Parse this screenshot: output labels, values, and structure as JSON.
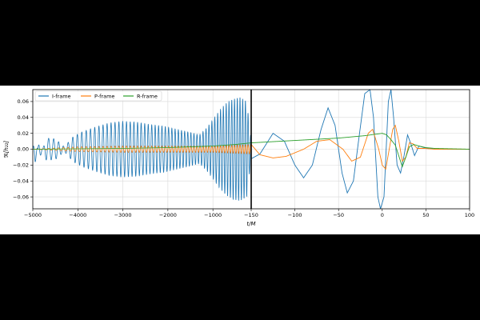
{
  "chart_data": {
    "type": "line",
    "title": "",
    "xlabel": "t/M",
    "ylabel": "ℜ[h₂₂]",
    "ylim": [
      -0.075,
      0.075
    ],
    "grid": true,
    "legend_position": "top-left",
    "panels": [
      {
        "name": "left",
        "xlim": [
          -5000,
          -150
        ],
        "xticks": [
          -5000,
          -4000,
          -3000,
          -2000,
          -1000,
          -150
        ],
        "xtick_labels": [
          "−5000",
          "−4000",
          "−3000",
          "−2000",
          "−1000",
          "−150"
        ]
      },
      {
        "name": "right",
        "xlim": [
          -150,
          100
        ],
        "xticks": [
          -100,
          -50,
          0,
          50,
          100
        ],
        "xtick_labels": [
          "−100",
          "−50",
          "0",
          "50",
          "100"
        ]
      }
    ],
    "yticks": [
      -0.06,
      -0.04,
      -0.02,
      0.0,
      0.02,
      0.04,
      0.06
    ],
    "ytick_labels": [
      "−0.06",
      "−0.04",
      "−0.02",
      "0.00",
      "0.02",
      "0.04",
      "0.06"
    ],
    "series": [
      {
        "name": "I-frame",
        "color": "#1f77b4",
        "points": [
          [
            -5000,
            0.0
          ],
          [
            -4950,
            -0.018
          ],
          [
            -4850,
            0.012
          ],
          [
            -4700,
            -0.014
          ],
          [
            -4500,
            -0.013
          ],
          [
            -4300,
            -0.003
          ],
          [
            -4100,
            -0.016
          ],
          [
            -3900,
            -0.022
          ],
          [
            -3600,
            -0.028
          ],
          [
            -3300,
            -0.033
          ],
          [
            -3000,
            -0.035
          ],
          [
            -2700,
            -0.034
          ],
          [
            -2400,
            -0.031
          ],
          [
            -2100,
            -0.029
          ],
          [
            -1800,
            -0.025
          ],
          [
            -1500,
            -0.021
          ],
          [
            -1300,
            -0.018
          ],
          [
            -1150,
            -0.026
          ],
          [
            -1000,
            -0.037
          ],
          [
            -850,
            -0.049
          ],
          [
            -700,
            -0.058
          ],
          [
            -550,
            -0.063
          ],
          [
            -400,
            -0.065
          ],
          [
            -250,
            -0.06
          ],
          [
            -150,
            -0.012
          ],
          [
            -140,
            -0.006
          ],
          [
            -125,
            0.02
          ],
          [
            -112,
            0.01
          ],
          [
            -100,
            -0.02
          ],
          [
            -90,
            -0.036
          ],
          [
            -80,
            -0.02
          ],
          [
            -70,
            0.025
          ],
          [
            -62,
            0.052
          ],
          [
            -54,
            0.03
          ],
          [
            -46,
            -0.03
          ],
          [
            -40,
            -0.055
          ],
          [
            -33,
            -0.04
          ],
          [
            -26,
            0.02
          ],
          [
            -20,
            0.07
          ],
          [
            -14,
            0.075
          ],
          [
            -10,
            0.04
          ],
          [
            -5,
            -0.06
          ],
          [
            -2,
            -0.075
          ],
          [
            2,
            -0.06
          ],
          [
            7,
            0.06
          ],
          [
            10,
            0.075
          ],
          [
            13,
            0.04
          ],
          [
            17,
            -0.02
          ],
          [
            21,
            -0.03
          ],
          [
            25,
            -0.008
          ],
          [
            29,
            0.018
          ],
          [
            33,
            0.006
          ],
          [
            37,
            -0.008
          ],
          [
            42,
            0.004
          ],
          [
            48,
            0.002
          ],
          [
            60,
            0.0
          ],
          [
            100,
            0.0
          ]
        ]
      },
      {
        "name": "P-frame",
        "color": "#ff7f0e",
        "points": [
          [
            -5000,
            0.0
          ],
          [
            -4000,
            0.003
          ],
          [
            -3000,
            0.004
          ],
          [
            -2000,
            0.004
          ],
          [
            -1000,
            0.004
          ],
          [
            -150,
            0.006
          ],
          [
            -140,
            -0.007
          ],
          [
            -125,
            -0.011
          ],
          [
            -110,
            -0.009
          ],
          [
            -90,
            0.0
          ],
          [
            -75,
            0.01
          ],
          [
            -60,
            0.012
          ],
          [
            -45,
            0.0
          ],
          [
            -35,
            -0.015
          ],
          [
            -25,
            -0.01
          ],
          [
            -16,
            0.02
          ],
          [
            -11,
            0.025
          ],
          [
            -4,
            0.0
          ],
          [
            0,
            -0.02
          ],
          [
            4,
            -0.025
          ],
          [
            8,
            0.0
          ],
          [
            12,
            0.025
          ],
          [
            15,
            0.03
          ],
          [
            19,
            0.01
          ],
          [
            23,
            -0.015
          ],
          [
            27,
            -0.01
          ],
          [
            31,
            0.008
          ],
          [
            35,
            0.007
          ],
          [
            40,
            0.001
          ],
          [
            48,
            0.001
          ],
          [
            60,
            0.0
          ],
          [
            100,
            0.0
          ]
        ]
      },
      {
        "name": "R-frame",
        "color": "#2ca02c",
        "points": [
          [
            -5000,
            0.0
          ],
          [
            -4000,
            0.0005
          ],
          [
            -3000,
            0.001
          ],
          [
            -2000,
            0.002
          ],
          [
            -1000,
            0.004
          ],
          [
            -500,
            0.006
          ],
          [
            -150,
            0.008
          ],
          [
            -100,
            0.011
          ],
          [
            -50,
            0.014
          ],
          [
            -20,
            0.017
          ],
          [
            0,
            0.02
          ],
          [
            5,
            0.018
          ],
          [
            10,
            0.012
          ],
          [
            15,
            0.005
          ],
          [
            20,
            -0.012
          ],
          [
            23,
            -0.022
          ],
          [
            27,
            -0.01
          ],
          [
            31,
            0.003
          ],
          [
            36,
            0.006
          ],
          [
            42,
            0.004
          ],
          [
            50,
            0.002
          ],
          [
            60,
            0.001
          ],
          [
            100,
            0.0
          ]
        ]
      }
    ]
  }
}
